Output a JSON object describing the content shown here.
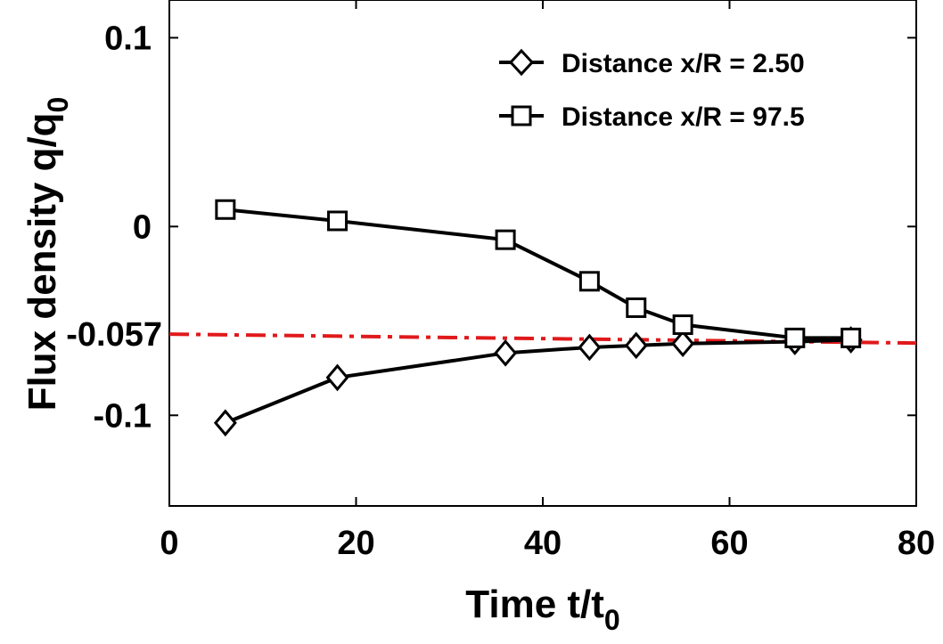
{
  "chart_data": {
    "type": "line",
    "title": "",
    "xlabel": {
      "main": "Time t/t",
      "sub": "0"
    },
    "ylabel": {
      "main": "Flux density q/q",
      "sub": "0"
    },
    "xlim": [
      0,
      80
    ],
    "ylim": [
      -0.148,
      0.12
    ],
    "xticks": [
      {
        "value": 0,
        "label": "0"
      },
      {
        "value": 20,
        "label": "20"
      },
      {
        "value": 40,
        "label": "40"
      },
      {
        "value": 60,
        "label": "60"
      },
      {
        "value": 80,
        "label": "80"
      }
    ],
    "yticks": [
      {
        "value": 0.1,
        "label": "0.1"
      },
      {
        "value": 0,
        "label": "0"
      },
      {
        "value": -0.1,
        "label": "-0.1"
      }
    ],
    "reference_line": {
      "y": -0.057,
      "label": "-0.057",
      "color": "#e0191b",
      "style": "dash-dot"
    },
    "grid": false,
    "legend_position": "top-right",
    "series": [
      {
        "name": "Distance x/R = 2.50",
        "marker": "diamond",
        "x": [
          6,
          18,
          36,
          45,
          50,
          55,
          67,
          73
        ],
        "y": [
          -0.104,
          -0.08,
          -0.067,
          -0.064,
          -0.063,
          -0.062,
          -0.061,
          -0.06
        ]
      },
      {
        "name": "Distance x/R = 97.5",
        "marker": "square",
        "x": [
          6,
          18,
          36,
          45,
          50,
          55,
          67,
          73
        ],
        "y": [
          0.009,
          0.003,
          -0.007,
          -0.029,
          -0.043,
          -0.052,
          -0.059,
          -0.059
        ]
      }
    ]
  }
}
